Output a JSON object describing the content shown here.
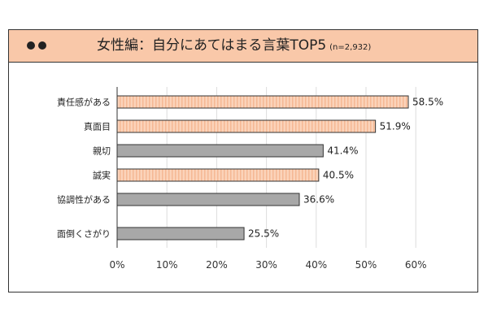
{
  "header": {
    "title": "女性編：自分にあてはまる言葉TOP5",
    "sample": "(n=2,932)"
  },
  "chart_data": {
    "type": "bar",
    "orientation": "horizontal",
    "categories": [
      "責任感がある",
      "真面目",
      "親切",
      "誠実",
      "協調性がある",
      "面倒くさがり"
    ],
    "values": [
      58.5,
      51.9,
      41.4,
      40.5,
      36.6,
      25.5
    ],
    "value_labels": [
      "58.5%",
      "51.9%",
      "41.4%",
      "40.5%",
      "36.6%",
      "25.5%"
    ],
    "highlighted": [
      true,
      true,
      false,
      true,
      false,
      false
    ],
    "xlim": [
      0,
      60
    ],
    "xticks": [
      "0%",
      "10%",
      "20%",
      "30%",
      "40%",
      "50%",
      "60%"
    ],
    "grid": true,
    "colors": {
      "highlight": "#fbd3ba",
      "highlight_stripe": "#f5b894",
      "normal": "#a8a8a8",
      "stroke": "#333333",
      "grid": "#dddddd"
    }
  }
}
